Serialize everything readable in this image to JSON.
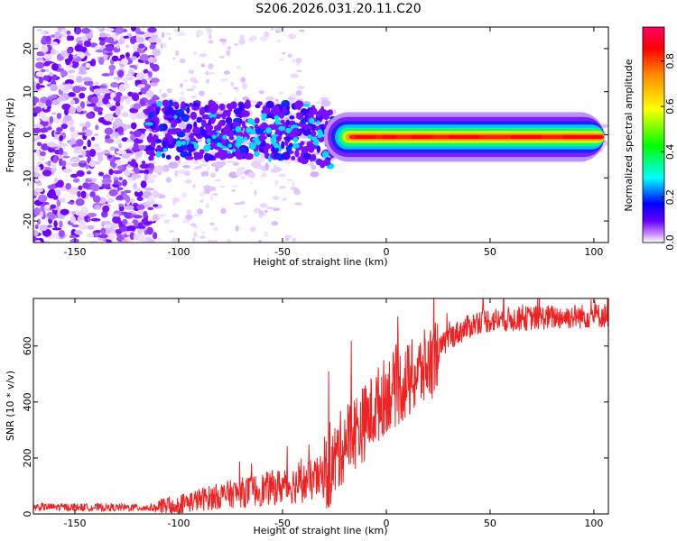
{
  "title": "S206.2026.031.20.11.C20",
  "chart_data": [
    {
      "type": "heatmap",
      "title": "S206.2026.031.20.11.C20",
      "xlabel": "Height of straight line (km)",
      "ylabel": "Frequency (Hz)",
      "xlim": [
        -170,
        107
      ],
      "ylim": [
        -25,
        25
      ],
      "xticks": [
        -150,
        -100,
        -50,
        0,
        50,
        100
      ],
      "yticks": [
        -20,
        -10,
        0,
        10,
        20
      ],
      "colorbar": {
        "label": "Normalized spectral amplitude",
        "range": [
          0,
          0.95
        ],
        "ticks": [
          0.0,
          0.2,
          0.4,
          0.6,
          0.8
        ],
        "stops": [
          "#ffffff",
          "#cc88ff",
          "#6600ff",
          "#0000ff",
          "#00ffff",
          "#00ff00",
          "#ffff00",
          "#ff8800",
          "#ff0000",
          "#ff0066"
        ]
      },
      "signal_band": {
        "x_start": -30,
        "x_end": 105,
        "center_hz": -0.5,
        "peak_value": 0.95
      }
    },
    {
      "type": "line",
      "xlabel": "Height of straight line (km)",
      "ylabel": "SNR (10 * v/v)",
      "xlim": [
        -170,
        107
      ],
      "ylim": [
        0,
        770
      ],
      "xticks": [
        -150,
        -100,
        -50,
        0,
        50,
        100
      ],
      "yticks": [
        0,
        200,
        400,
        600
      ],
      "color": "#ee2222",
      "series": [
        {
          "name": "SNR",
          "profile": [
            [
              -170,
              25
            ],
            [
              -110,
              22
            ],
            [
              -80,
              65
            ],
            [
              -40,
              110
            ],
            [
              -28,
              140
            ],
            [
              -20,
              260
            ],
            [
              -10,
              330
            ],
            [
              0,
              430
            ],
            [
              10,
              470
            ],
            [
              20,
              530
            ],
            [
              30,
              630
            ],
            [
              45,
              690
            ],
            [
              70,
              700
            ],
            [
              107,
              710
            ]
          ]
        }
      ]
    }
  ]
}
